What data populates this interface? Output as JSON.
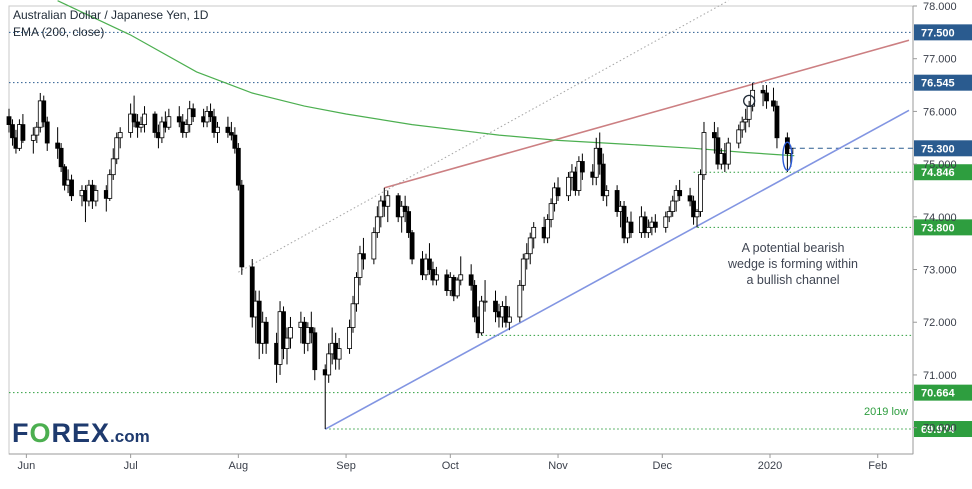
{
  "header": {
    "title": "Australian Dollar / Japanese Yen, 1D",
    "indicator": "EMA (200, close)"
  },
  "logo": {
    "text": "FOREX.com"
  },
  "annotation": {
    "lines": [
      "A potential bearish",
      "wedge is forming within",
      "a bullish channel"
    ],
    "low_label": "2019 low"
  },
  "colors": {
    "bull_candle": "#ffffff",
    "bear_candle": "#000000",
    "ema": "#4caf50",
    "wedge_top": "#c9787b",
    "channel": "#7b8fe0",
    "level_green": "#2e9e3f",
    "level_blue": "#2a5b8f",
    "logo": "#1e3a6e",
    "logo_accent": "#4caf50"
  },
  "chart_data": {
    "type": "candlestick",
    "title": "Australian Dollar / Japanese Yen, 1D",
    "ylim": [
      69.5,
      78.0
    ],
    "y_ticks": [
      78.0,
      77.0,
      76.0,
      75.0,
      74.0,
      73.0,
      72.0,
      71.0,
      70.0
    ],
    "y_tick_labels": [
      "78.000",
      "77.000",
      "76.000",
      "75.000",
      "74.000",
      "73.000",
      "72.000",
      "71.000",
      "70.000"
    ],
    "x_month_labels": [
      "Jun",
      "Jul",
      "Aug",
      "Sep",
      "Oct",
      "Nov",
      "Dec",
      "2020",
      "Feb"
    ],
    "x_month_dates": [
      "2019-06-01",
      "2019-07-01",
      "2019-08-01",
      "2019-09-01",
      "2019-10-01",
      "2019-11-01",
      "2019-12-01",
      "2020-01-01",
      "2020-02-01"
    ],
    "date_range": [
      "2019-05-27",
      "2020-02-10"
    ],
    "grid": false,
    "levels": [
      {
        "value": 77.5,
        "label": "77.500",
        "color": "#2a5b8f"
      },
      {
        "value": 76.545,
        "label": "76.545",
        "color": "#2a5b8f"
      },
      {
        "value": 75.3,
        "label": "75.300",
        "color": "#2a5b8f"
      },
      {
        "value": 74.846,
        "label": "74.846",
        "color": "#2e9e3f"
      },
      {
        "value": 73.8,
        "label": "73.800",
        "color": "#2e9e3f"
      },
      {
        "value": 71.75,
        "label": "",
        "color": "#2e9e3f"
      },
      {
        "value": 70.664,
        "label": "70.664",
        "color": "#2e9e3f"
      },
      {
        "value": 69.974,
        "label": "69.974",
        "color": "#2e9e3f"
      }
    ],
    "trendlines": [
      {
        "name": "wedge-top",
        "from": [
          "2019-09-12",
          74.55
        ],
        "to": [
          "2020-02-10",
          77.35
        ],
        "color": "#c9787b"
      },
      {
        "name": "channel-bottom",
        "from": [
          "2019-08-26",
          69.97
        ],
        "to": [
          "2020-02-10",
          76.02
        ],
        "color": "#7b8fe0"
      },
      {
        "name": "channel-top-dotted",
        "from": [
          "2019-08-01",
          72.95
        ],
        "to": [
          "2019-12-20",
          78.1
        ],
        "color": "#9a9a9a"
      }
    ],
    "ema": [
      [
        "2019-06-10",
        78.1
      ],
      [
        "2019-07-01",
        77.45
      ],
      [
        "2019-07-20",
        76.75
      ],
      [
        "2019-08-05",
        76.35
      ],
      [
        "2019-08-20",
        76.1
      ],
      [
        "2019-09-01",
        75.95
      ],
      [
        "2019-09-20",
        75.75
      ],
      [
        "2019-10-15",
        75.55
      ],
      [
        "2019-11-01",
        75.45
      ],
      [
        "2019-11-20",
        75.38
      ],
      [
        "2019-12-10",
        75.3
      ],
      [
        "2019-12-25",
        75.22
      ],
      [
        "2020-01-03",
        75.18
      ],
      [
        "2020-01-08",
        75.16
      ]
    ],
    "candles": [
      [
        "2019-05-27",
        75.9,
        76.05,
        75.6,
        75.75
      ],
      [
        "2019-05-28",
        75.75,
        75.85,
        75.35,
        75.5
      ],
      [
        "2019-05-29",
        75.5,
        75.65,
        75.2,
        75.3
      ],
      [
        "2019-05-30",
        75.3,
        75.85,
        75.25,
        75.75
      ],
      [
        "2019-05-31",
        75.75,
        75.95,
        75.4,
        75.45
      ],
      [
        "2019-06-03",
        75.45,
        75.7,
        75.2,
        75.55
      ],
      [
        "2019-06-04",
        75.55,
        75.8,
        75.4,
        75.7
      ],
      [
        "2019-06-05",
        75.7,
        76.35,
        75.6,
        76.2
      ],
      [
        "2019-06-06",
        76.2,
        76.3,
        75.7,
        75.8
      ],
      [
        "2019-06-07",
        75.8,
        75.9,
        75.25,
        75.4
      ],
      [
        "2019-06-10",
        75.4,
        75.7,
        75.1,
        75.3
      ],
      [
        "2019-06-11",
        75.3,
        75.4,
        74.85,
        74.95
      ],
      [
        "2019-06-12",
        74.95,
        75.0,
        74.5,
        74.6
      ],
      [
        "2019-06-13",
        74.6,
        74.9,
        74.45,
        74.7
      ],
      [
        "2019-06-14",
        74.7,
        74.8,
        74.3,
        74.4
      ],
      [
        "2019-06-17",
        74.4,
        74.6,
        74.2,
        74.5
      ],
      [
        "2019-06-18",
        74.5,
        74.6,
        73.9,
        74.3
      ],
      [
        "2019-06-19",
        74.3,
        74.7,
        74.2,
        74.6
      ],
      [
        "2019-06-20",
        74.6,
        74.7,
        74.15,
        74.3
      ],
      [
        "2019-06-21",
        74.3,
        74.6,
        74.2,
        74.5
      ],
      [
        "2019-06-24",
        74.5,
        74.6,
        74.1,
        74.35
      ],
      [
        "2019-06-25",
        74.35,
        74.9,
        74.3,
        74.8
      ],
      [
        "2019-06-26",
        74.8,
        75.3,
        74.7,
        75.1
      ],
      [
        "2019-06-27",
        75.1,
        75.6,
        75.0,
        75.5
      ],
      [
        "2019-06-28",
        75.5,
        75.7,
        75.3,
        75.6
      ],
      [
        "2019-07-01",
        75.6,
        76.15,
        75.5,
        75.95
      ],
      [
        "2019-07-02",
        75.95,
        76.3,
        75.7,
        75.8
      ],
      [
        "2019-07-03",
        75.8,
        75.95,
        75.5,
        75.7
      ],
      [
        "2019-07-04",
        75.7,
        75.9,
        75.6,
        75.75
      ],
      [
        "2019-07-05",
        75.75,
        76.1,
        75.6,
        75.95
      ],
      [
        "2019-07-08",
        75.95,
        76.0,
        75.5,
        75.6
      ],
      [
        "2019-07-09",
        75.6,
        75.75,
        75.3,
        75.5
      ],
      [
        "2019-07-10",
        75.5,
        75.9,
        75.4,
        75.8
      ],
      [
        "2019-07-11",
        75.8,
        76.0,
        75.6,
        75.7
      ],
      [
        "2019-07-12",
        75.7,
        76.05,
        75.65,
        75.9
      ],
      [
        "2019-07-15",
        75.9,
        76.1,
        75.7,
        75.8
      ],
      [
        "2019-07-16",
        75.8,
        75.95,
        75.5,
        75.6
      ],
      [
        "2019-07-17",
        75.6,
        75.85,
        75.5,
        75.75
      ],
      [
        "2019-07-18",
        75.75,
        76.2,
        75.6,
        76.05
      ],
      [
        "2019-07-19",
        76.05,
        76.15,
        75.8,
        75.9
      ],
      [
        "2019-07-22",
        75.9,
        76.05,
        75.7,
        75.8
      ],
      [
        "2019-07-23",
        75.8,
        76.1,
        75.7,
        76.0
      ],
      [
        "2019-07-24",
        76.0,
        76.15,
        75.8,
        75.9
      ],
      [
        "2019-07-25",
        75.9,
        76.05,
        75.5,
        75.6
      ],
      [
        "2019-07-26",
        75.6,
        75.8,
        75.4,
        75.7
      ],
      [
        "2019-07-29",
        75.7,
        75.9,
        75.5,
        75.6
      ],
      [
        "2019-07-30",
        75.6,
        75.8,
        75.45,
        75.55
      ],
      [
        "2019-07-31",
        75.55,
        75.7,
        75.2,
        75.3
      ],
      [
        "2019-08-01",
        75.3,
        75.4,
        74.5,
        74.6
      ],
      [
        "2019-08-02",
        74.6,
        74.7,
        72.9,
        73.05
      ],
      [
        "2019-08-05",
        73.05,
        73.2,
        71.9,
        72.1
      ],
      [
        "2019-08-06",
        72.1,
        72.6,
        71.6,
        72.4
      ],
      [
        "2019-08-07",
        72.4,
        72.6,
        71.3,
        71.6
      ],
      [
        "2019-08-08",
        71.6,
        72.2,
        71.4,
        72.0
      ],
      [
        "2019-08-09",
        72.0,
        72.1,
        71.4,
        71.6
      ],
      [
        "2019-08-12",
        71.6,
        71.8,
        70.85,
        71.2
      ],
      [
        "2019-08-13",
        71.2,
        72.4,
        71.0,
        72.2
      ],
      [
        "2019-08-14",
        72.2,
        72.3,
        71.3,
        71.5
      ],
      [
        "2019-08-15",
        71.5,
        71.9,
        71.2,
        71.7
      ],
      [
        "2019-08-16",
        71.7,
        72.1,
        71.5,
        71.9
      ],
      [
        "2019-08-19",
        71.9,
        72.2,
        71.6,
        72.0
      ],
      [
        "2019-08-20",
        72.0,
        72.1,
        71.4,
        71.6
      ],
      [
        "2019-08-21",
        71.6,
        72.0,
        71.45,
        71.9
      ],
      [
        "2019-08-22",
        71.9,
        72.2,
        71.6,
        71.8
      ],
      [
        "2019-08-23",
        71.8,
        71.9,
        70.9,
        71.1
      ],
      [
        "2019-08-26",
        71.1,
        71.2,
        69.974,
        71.0
      ],
      [
        "2019-08-27",
        71.0,
        71.6,
        70.85,
        71.4
      ],
      [
        "2019-08-28",
        71.4,
        71.9,
        71.2,
        71.6
      ],
      [
        "2019-08-29",
        71.6,
        71.8,
        71.1,
        71.3
      ],
      [
        "2019-08-30",
        71.3,
        71.7,
        71.1,
        71.5
      ],
      [
        "2019-09-02",
        71.5,
        72.05,
        71.4,
        71.9
      ],
      [
        "2019-09-03",
        71.9,
        72.5,
        71.8,
        72.35
      ],
      [
        "2019-09-04",
        72.35,
        72.95,
        72.2,
        72.85
      ],
      [
        "2019-09-05",
        72.85,
        73.45,
        72.7,
        73.3
      ],
      [
        "2019-09-06",
        73.3,
        73.6,
        73.0,
        73.2
      ],
      [
        "2019-09-09",
        73.2,
        73.8,
        73.1,
        73.7
      ],
      [
        "2019-09-10",
        73.7,
        74.2,
        73.6,
        74.0
      ],
      [
        "2019-09-11",
        74.0,
        74.4,
        73.8,
        74.3
      ],
      [
        "2019-09-12",
        74.3,
        74.55,
        74.0,
        74.2
      ],
      [
        "2019-09-13",
        74.2,
        74.5,
        73.9,
        74.4
      ],
      [
        "2019-09-16",
        74.4,
        74.45,
        73.9,
        74.0
      ],
      [
        "2019-09-17",
        74.0,
        74.3,
        73.7,
        74.2
      ],
      [
        "2019-09-18",
        74.2,
        74.4,
        73.9,
        74.1
      ],
      [
        "2019-09-19",
        74.1,
        74.2,
        73.6,
        73.7
      ],
      [
        "2019-09-20",
        73.7,
        73.75,
        73.1,
        73.2
      ],
      [
        "2019-09-23",
        73.2,
        73.35,
        72.8,
        72.9
      ],
      [
        "2019-09-24",
        72.9,
        73.3,
        72.8,
        73.2
      ],
      [
        "2019-09-25",
        73.2,
        73.5,
        72.9,
        73.0
      ],
      [
        "2019-09-26",
        73.0,
        73.15,
        72.7,
        72.8
      ],
      [
        "2019-09-27",
        72.8,
        73.05,
        72.7,
        72.9
      ],
      [
        "2019-09-30",
        72.9,
        73.0,
        72.5,
        72.6
      ],
      [
        "2019-10-01",
        72.6,
        72.95,
        72.5,
        72.85
      ],
      [
        "2019-10-02",
        72.85,
        72.9,
        72.4,
        72.5
      ],
      [
        "2019-10-03",
        72.5,
        72.85,
        72.45,
        72.8
      ],
      [
        "2019-10-04",
        72.8,
        73.25,
        72.7,
        72.9
      ],
      [
        "2019-10-07",
        72.9,
        73.1,
        72.6,
        72.7
      ],
      [
        "2019-10-08",
        72.7,
        72.8,
        72.0,
        72.1
      ],
      [
        "2019-10-09",
        72.1,
        72.3,
        71.7,
        71.8
      ],
      [
        "2019-10-10",
        71.8,
        72.5,
        71.75,
        72.4
      ],
      [
        "2019-10-11",
        72.4,
        72.8,
        72.2,
        72.4
      ],
      [
        "2019-10-14",
        72.4,
        72.6,
        72.0,
        72.2
      ],
      [
        "2019-10-15",
        72.2,
        72.35,
        71.9,
        72.1
      ],
      [
        "2019-10-16",
        72.1,
        72.4,
        71.9,
        72.3
      ],
      [
        "2019-10-17",
        72.3,
        72.5,
        71.9,
        72.0
      ],
      [
        "2019-10-18",
        72.0,
        72.3,
        71.85,
        72.1
      ],
      [
        "2019-10-21",
        72.1,
        72.8,
        72.0,
        72.7
      ],
      [
        "2019-10-22",
        72.7,
        73.3,
        72.6,
        73.2
      ],
      [
        "2019-10-23",
        73.2,
        73.5,
        73.0,
        73.3
      ],
      [
        "2019-10-24",
        73.3,
        73.7,
        73.1,
        73.6
      ],
      [
        "2019-10-25",
        73.6,
        73.9,
        73.4,
        73.8
      ],
      [
        "2019-10-28",
        73.8,
        74.0,
        73.5,
        73.6
      ],
      [
        "2019-10-29",
        73.6,
        74.05,
        73.5,
        73.95
      ],
      [
        "2019-10-30",
        73.95,
        74.35,
        73.8,
        74.25
      ],
      [
        "2019-10-31",
        74.25,
        74.65,
        74.1,
        74.55
      ],
      [
        "2019-11-01",
        74.55,
        74.75,
        74.3,
        74.4
      ],
      [
        "2019-11-04",
        74.4,
        74.85,
        74.3,
        74.75
      ],
      [
        "2019-11-05",
        74.75,
        75.0,
        74.5,
        74.85
      ],
      [
        "2019-11-06",
        74.85,
        74.95,
        74.4,
        74.5
      ],
      [
        "2019-11-07",
        74.5,
        75.15,
        74.4,
        75.05
      ],
      [
        "2019-11-08",
        75.05,
        75.2,
        74.7,
        74.85
      ],
      [
        "2019-11-11",
        74.85,
        75.0,
        74.6,
        74.75
      ],
      [
        "2019-11-12",
        74.75,
        75.5,
        74.6,
        75.3
      ],
      [
        "2019-11-13",
        75.3,
        75.6,
        74.8,
        75.0
      ],
      [
        "2019-11-14",
        75.0,
        75.2,
        74.3,
        74.4
      ],
      [
        "2019-11-15",
        74.4,
        74.6,
        74.2,
        74.5
      ],
      [
        "2019-11-18",
        74.5,
        74.6,
        74.0,
        74.1
      ],
      [
        "2019-11-19",
        74.1,
        74.3,
        73.8,
        74.2
      ],
      [
        "2019-11-20",
        74.2,
        74.3,
        73.5,
        73.6
      ],
      [
        "2019-11-21",
        73.6,
        74.0,
        73.5,
        73.9
      ],
      [
        "2019-11-22",
        73.9,
        74.1,
        73.6,
        73.7
      ],
      [
        "2019-11-25",
        73.7,
        74.2,
        73.6,
        74.0
      ],
      [
        "2019-11-26",
        74.0,
        74.1,
        73.6,
        73.7
      ],
      [
        "2019-11-27",
        73.7,
        73.95,
        73.6,
        73.8
      ],
      [
        "2019-11-28",
        73.8,
        74.0,
        73.65,
        73.9
      ],
      [
        "2019-11-29",
        73.9,
        74.05,
        73.7,
        73.8
      ],
      [
        "2019-12-02",
        73.8,
        74.1,
        73.7,
        74.0
      ],
      [
        "2019-12-03",
        74.0,
        74.2,
        73.9,
        74.1
      ],
      [
        "2019-12-04",
        74.1,
        74.4,
        74.0,
        74.3
      ],
      [
        "2019-12-05",
        74.3,
        74.6,
        74.1,
        74.5
      ],
      [
        "2019-12-06",
        74.5,
        74.7,
        74.3,
        74.4
      ],
      [
        "2019-12-09",
        74.4,
        74.55,
        74.2,
        74.3
      ],
      [
        "2019-12-10",
        74.3,
        74.4,
        73.85,
        74.0
      ],
      [
        "2019-12-11",
        74.0,
        74.15,
        73.8,
        74.1
      ],
      [
        "2019-12-12",
        74.1,
        74.9,
        74.0,
        74.8
      ],
      [
        "2019-12-13",
        74.8,
        75.8,
        74.7,
        75.6
      ],
      [
        "2019-12-16",
        75.6,
        75.8,
        75.2,
        75.5
      ],
      [
        "2019-12-17",
        75.5,
        75.7,
        74.9,
        75.0
      ],
      [
        "2019-12-18",
        75.0,
        75.3,
        74.9,
        75.2
      ],
      [
        "2019-12-19",
        75.2,
        75.4,
        74.85,
        75.0
      ],
      [
        "2019-12-20",
        75.0,
        75.5,
        74.9,
        75.4
      ],
      [
        "2019-12-23",
        75.4,
        75.75,
        75.3,
        75.65
      ],
      [
        "2019-12-24",
        75.65,
        75.9,
        75.5,
        75.8
      ],
      [
        "2019-12-25",
        75.8,
        76.05,
        75.6,
        75.85
      ],
      [
        "2019-12-26",
        75.85,
        76.2,
        75.7,
        76.1
      ],
      [
        "2019-12-27",
        76.1,
        76.545,
        76.0,
        76.4
      ],
      [
        "2019-12-30",
        76.4,
        76.5,
        76.1,
        76.35
      ],
      [
        "2019-12-31",
        76.35,
        76.5,
        76.05,
        76.2
      ],
      [
        "2020-01-02",
        76.2,
        76.45,
        76.0,
        76.1
      ],
      [
        "2020-01-03",
        76.1,
        76.2,
        75.3,
        75.5
      ],
      [
        "2020-01-06",
        75.5,
        75.6,
        74.85,
        75.2
      ],
      [
        "2020-01-07",
        75.2,
        75.35,
        74.95,
        75.3
      ]
    ]
  }
}
